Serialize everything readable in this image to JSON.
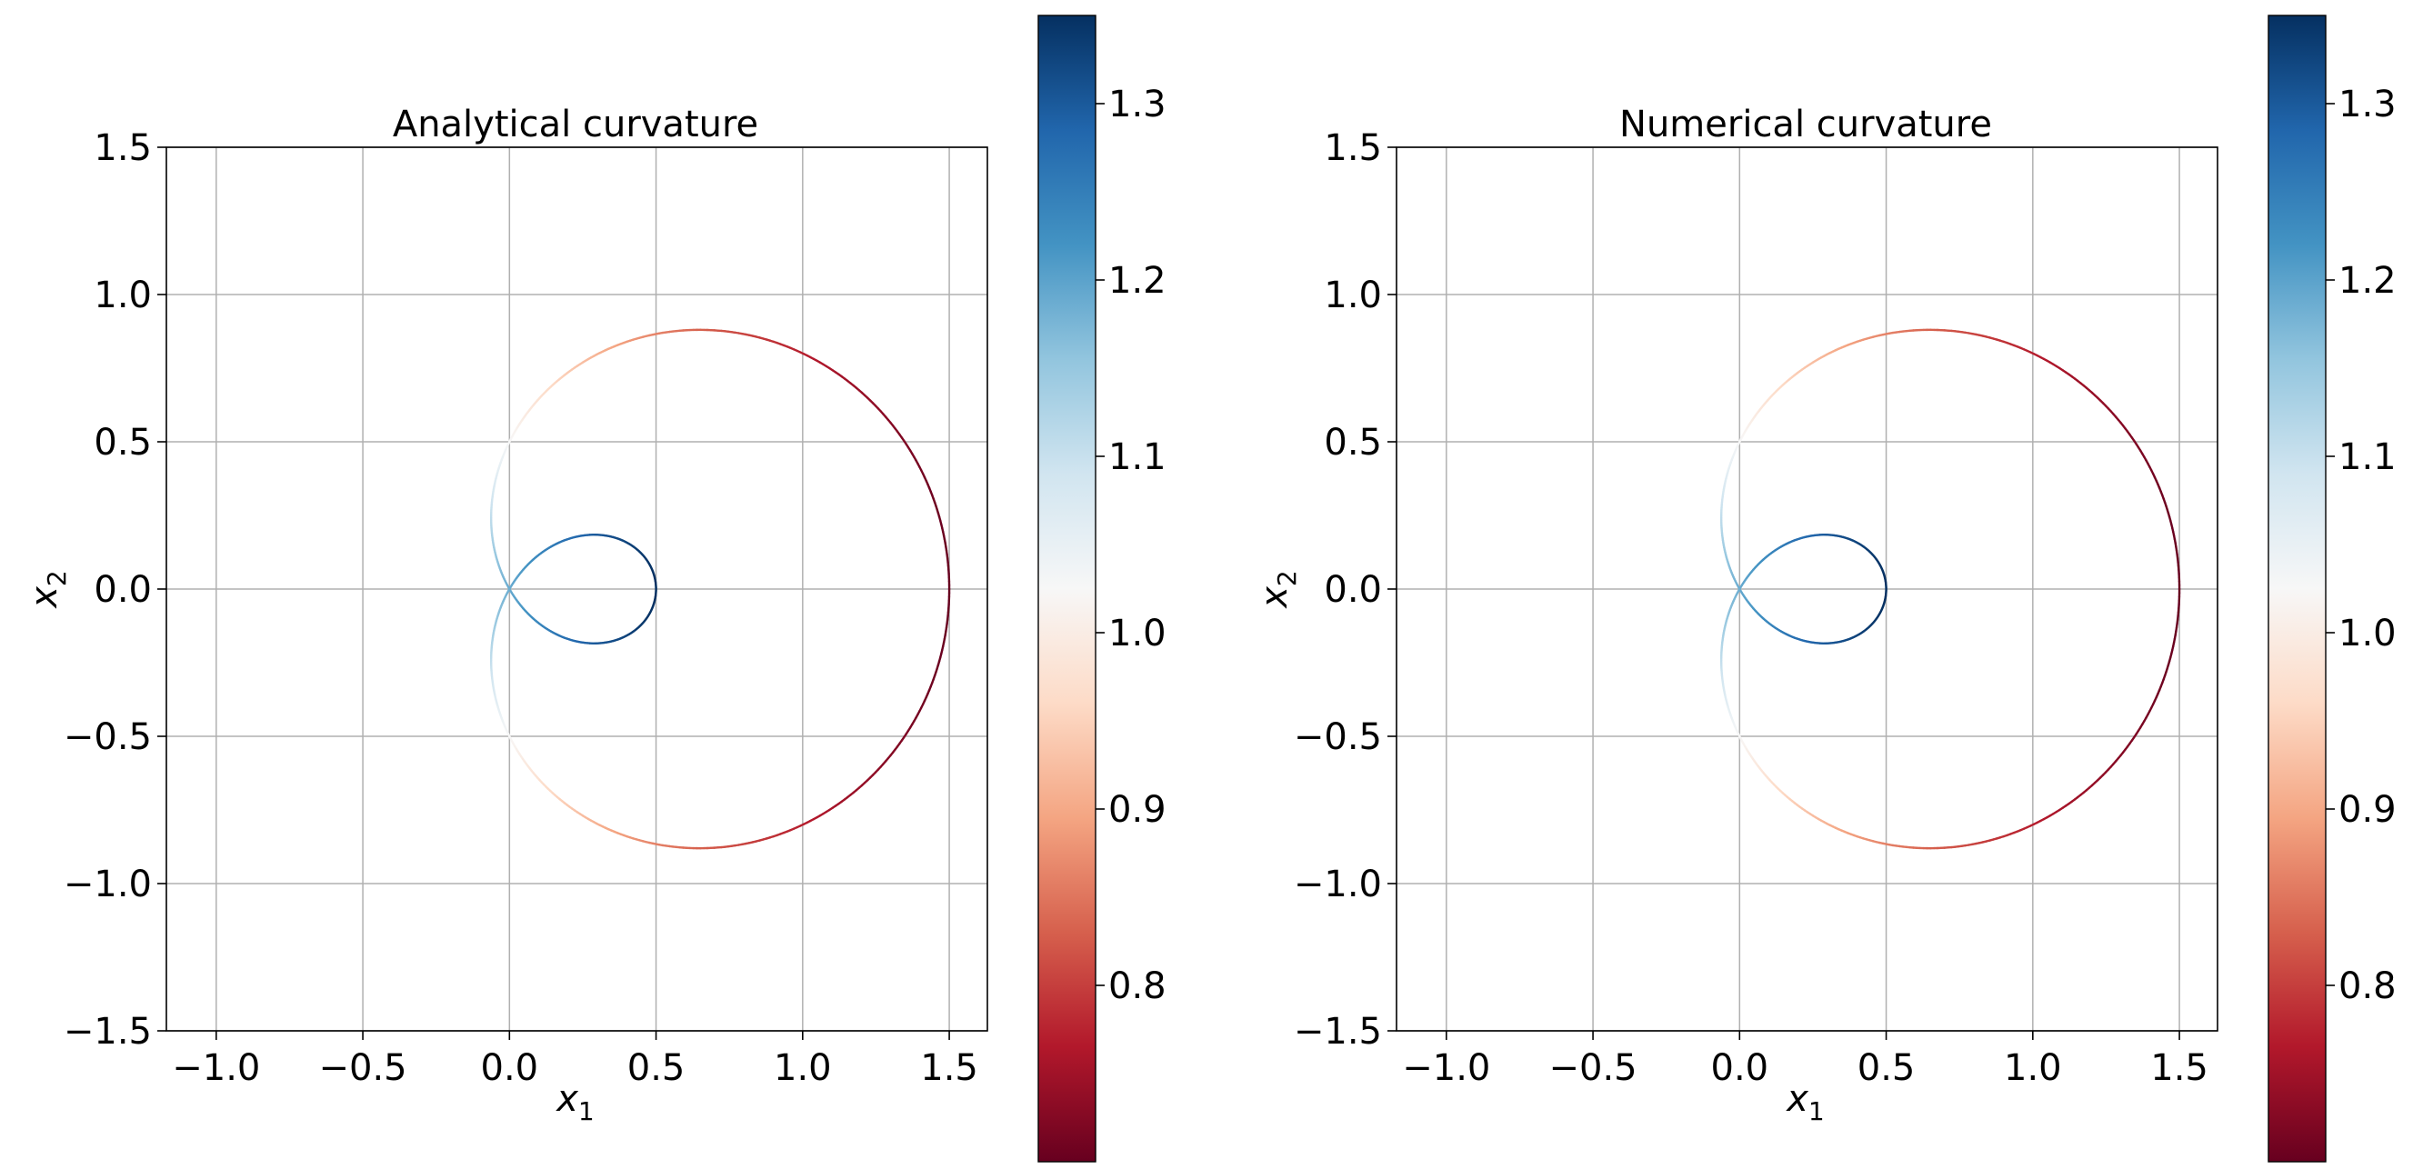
{
  "chart_data": [
    {
      "type": "scatter",
      "title": "Analytical curvature",
      "xlabel": "x1",
      "ylabel": "x2",
      "xlim": [
        -1.17,
        1.63
      ],
      "ylim": [
        -1.5,
        1.5
      ],
      "xticks": [
        -1.0,
        -0.5,
        0.0,
        0.5,
        1.0,
        1.5
      ],
      "yticks": [
        -1.5,
        -1.0,
        -0.5,
        0.0,
        0.5,
        1.0,
        1.5
      ],
      "xtick_labels": [
        "−1.0",
        "−0.5",
        "0.0",
        "0.5",
        "1.0",
        "1.5"
      ],
      "ytick_labels": [
        "−1.5",
        "−1.0",
        "−0.5",
        "0.0",
        "0.5",
        "1.0",
        "1.5"
      ],
      "grid": true,
      "curve": "limacon",
      "curve_params": {
        "a": 0.5,
        "b": 1.0
      },
      "colormap": "RdBu",
      "color_range": [
        0.7,
        1.35
      ],
      "colorbar_ticks": [
        0.8,
        0.9,
        1.0,
        1.1,
        1.2,
        1.3
      ],
      "colorbar_tick_labels": [
        "0.8",
        "0.9",
        "1.0",
        "1.1",
        "1.2",
        "1.3"
      ]
    },
    {
      "type": "scatter",
      "title": "Numerical curvature",
      "xlabel": "x1",
      "ylabel": "x2",
      "xlim": [
        -1.17,
        1.63
      ],
      "ylim": [
        -1.5,
        1.5
      ],
      "xticks": [
        -1.0,
        -0.5,
        0.0,
        0.5,
        1.0,
        1.5
      ],
      "yticks": [
        -1.5,
        -1.0,
        -0.5,
        0.0,
        0.5,
        1.0,
        1.5
      ],
      "xtick_labels": [
        "−1.0",
        "−0.5",
        "0.0",
        "0.5",
        "1.0",
        "1.5"
      ],
      "ytick_labels": [
        "−1.5",
        "−1.0",
        "−0.5",
        "0.0",
        "0.5",
        "1.0",
        "1.5"
      ],
      "grid": true,
      "curve": "limacon",
      "curve_params": {
        "a": 0.5,
        "b": 1.0
      },
      "colormap": "RdBu",
      "color_range": [
        0.7,
        1.35
      ],
      "colorbar_ticks": [
        0.8,
        0.9,
        1.0,
        1.1,
        1.2,
        1.3
      ],
      "colorbar_tick_labels": [
        "0.8",
        "0.9",
        "1.0",
        "1.1",
        "1.2",
        "1.3"
      ]
    }
  ],
  "colors": {
    "grid": "#b0b0b0",
    "axes": "#000000",
    "rdbu_stops": [
      "#67001f",
      "#b2182b",
      "#d6604d",
      "#f4a582",
      "#fddbc7",
      "#f7f7f7",
      "#d1e5f0",
      "#92c5de",
      "#4393c3",
      "#2166ac",
      "#053061"
    ]
  }
}
